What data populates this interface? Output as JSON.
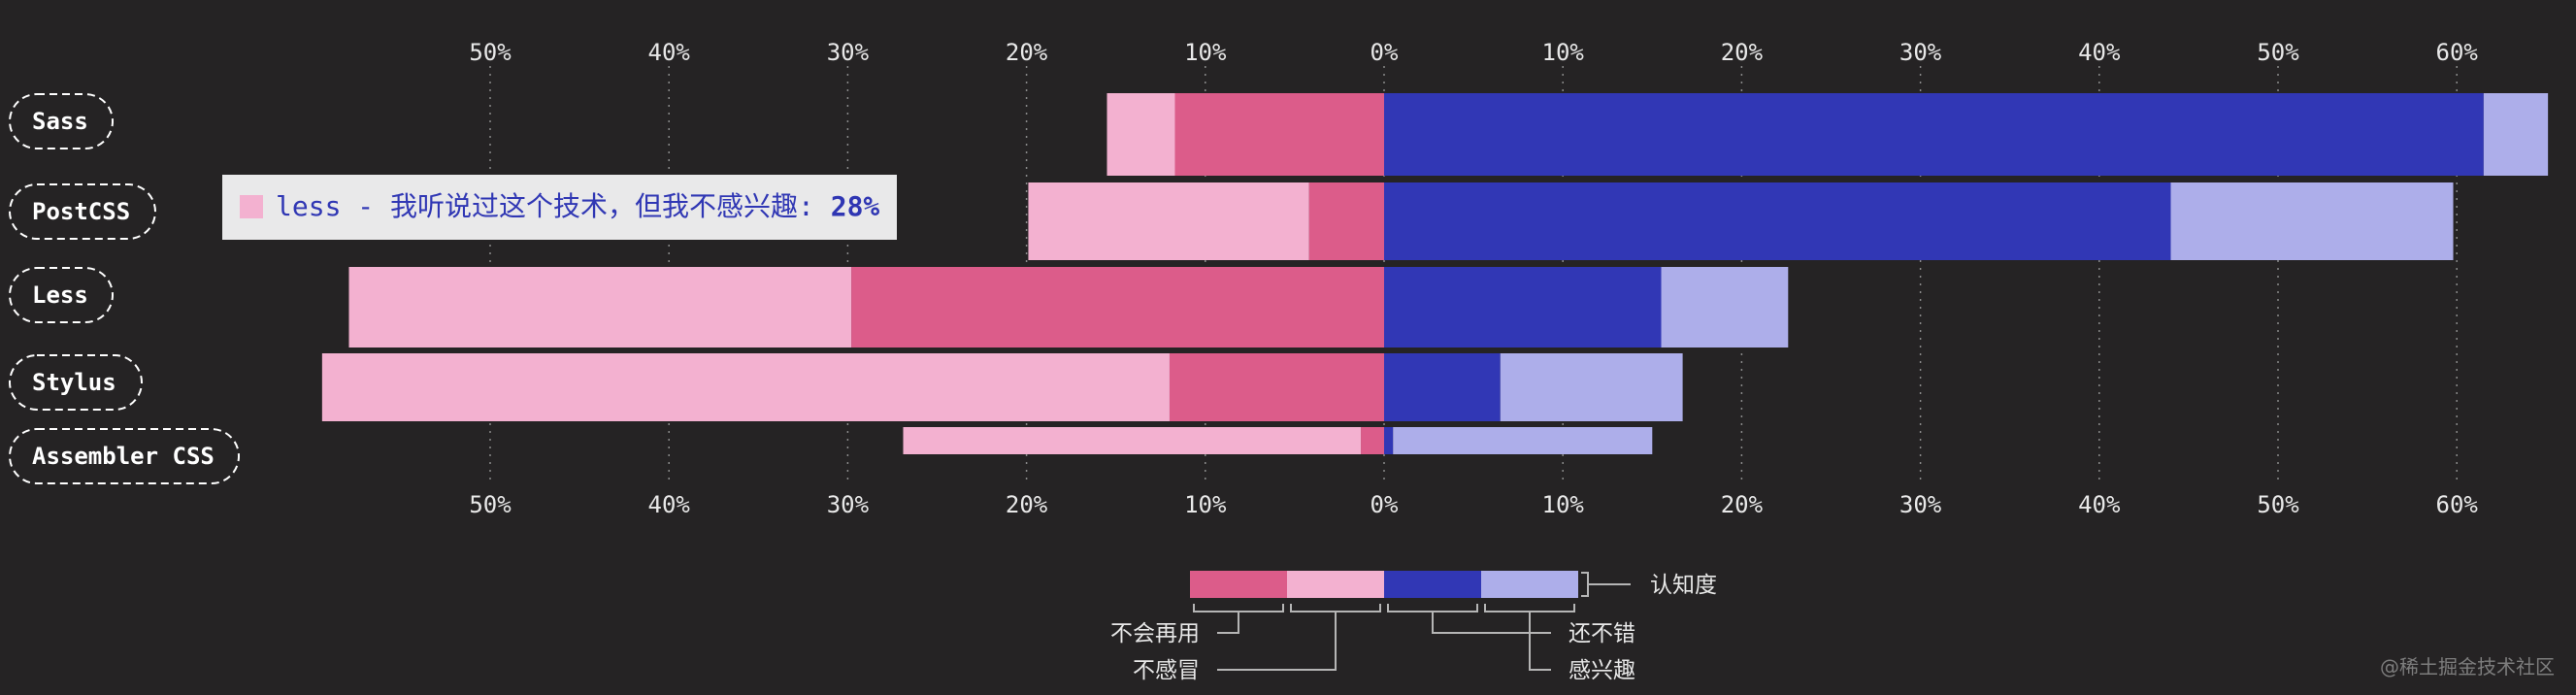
{
  "chart_data": {
    "type": "bar",
    "orientation": "horizontal-diverging",
    "x_tick_labels": [
      "50%",
      "40%",
      "30%",
      "20%",
      "10%",
      "0%",
      "10%",
      "20%",
      "30%",
      "40%",
      "50%",
      "60%"
    ],
    "x_tick_values": [
      -50,
      -40,
      -30,
      -20,
      -10,
      0,
      10,
      20,
      30,
      40,
      50,
      60
    ],
    "xlim": [
      -59.6,
      65
    ],
    "categories": [
      "Sass",
      "PostCSS",
      "Less",
      "Stylus",
      "Assembler CSS"
    ],
    "series": [
      {
        "name": "不感冒",
        "direction": "negative",
        "color": "#f3b1d0",
        "values": [
          3.8,
          15.7,
          28.1,
          47.4,
          25.6
        ]
      },
      {
        "name": "不会再用",
        "direction": "negative",
        "color": "#dc5c8a",
        "values": [
          11.7,
          4.2,
          29.8,
          12.0,
          1.3
        ]
      },
      {
        "name": "还不错",
        "direction": "positive",
        "color": "#3137b5",
        "values": [
          61.5,
          44.0,
          15.5,
          6.5,
          0.5
        ]
      },
      {
        "name": "感兴趣",
        "direction": "positive",
        "color": "#adaeea",
        "values": [
          3.6,
          15.8,
          7.1,
          10.2,
          14.5
        ]
      }
    ],
    "legend": {
      "placement": "bottom-center",
      "awareness_label": "认知度",
      "labels": [
        "不会再用",
        "不感冒",
        "还不错",
        "感兴趣"
      ]
    },
    "tooltip": {
      "text": "less - 我听说过这个技术，但我不感兴趣: ",
      "value": "28%",
      "color": "#f3b1d0"
    }
  },
  "watermark": "@稀土掘金技术社区"
}
